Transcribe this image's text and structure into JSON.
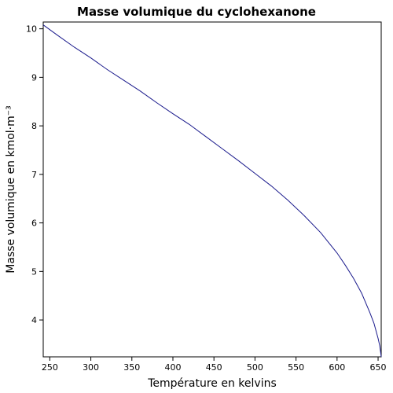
{
  "chart_data": {
    "type": "line",
    "title": "Masse volumique du cyclohexanone",
    "xlabel": "Température en kelvins",
    "ylabel": "Masse volumique en kmol·m⁻³",
    "xlim": [
      242,
      653.8
    ],
    "ylim": [
      3.24,
      10.14
    ],
    "xticks": [
      250,
      300,
      350,
      400,
      450,
      500,
      550,
      600,
      650
    ],
    "yticks": [
      4,
      5,
      6,
      7,
      8,
      9,
      10
    ],
    "grid": false,
    "legend": "none",
    "series": [
      {
        "color": "#1a1a8c",
        "x": [
          242,
          260,
          280,
          300,
          320,
          340,
          360,
          380,
          400,
          420,
          440,
          460,
          480,
          500,
          520,
          540,
          560,
          580,
          600,
          610,
          620,
          630,
          640,
          645,
          650,
          652,
          653,
          653.8
        ],
        "y": [
          10.08,
          9.86,
          9.62,
          9.4,
          9.16,
          8.94,
          8.72,
          8.48,
          8.25,
          8.03,
          7.78,
          7.53,
          7.28,
          7.02,
          6.76,
          6.47,
          6.15,
          5.8,
          5.38,
          5.13,
          4.86,
          4.55,
          4.15,
          3.93,
          3.62,
          3.47,
          3.35,
          3.24
        ]
      }
    ]
  }
}
